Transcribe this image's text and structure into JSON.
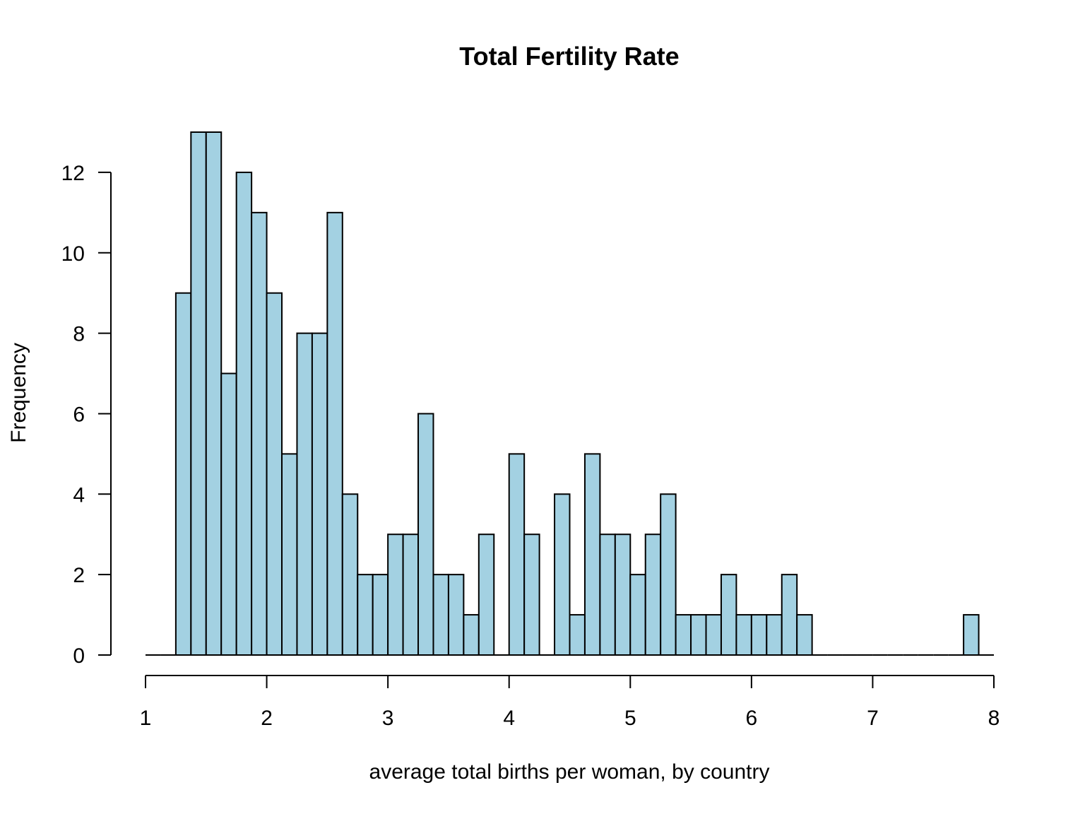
{
  "chart_data": {
    "type": "bar",
    "title": "Total Fertility Rate",
    "xlabel": "average total births per woman, by country",
    "ylabel": "Frequency",
    "xlim": [
      1,
      8
    ],
    "ylim": [
      0,
      13
    ],
    "x_ticks": [
      "1",
      "2",
      "3",
      "4",
      "5",
      "6",
      "7",
      "8"
    ],
    "y_ticks": [
      "0",
      "2",
      "4",
      "6",
      "8",
      "10",
      "12"
    ],
    "bin_width": 0.125,
    "bin_start": 1.0,
    "values": [
      0,
      0,
      9,
      13,
      13,
      7,
      12,
      11,
      9,
      5,
      8,
      8,
      11,
      4,
      2,
      2,
      3,
      3,
      6,
      2,
      2,
      1,
      3,
      0,
      5,
      3,
      0,
      4,
      1,
      5,
      3,
      3,
      2,
      3,
      4,
      1,
      1,
      1,
      2,
      1,
      1,
      1,
      2,
      1,
      0,
      0,
      0,
      0,
      0,
      0,
      0,
      0,
      0,
      0,
      1,
      0
    ],
    "bar_fill": "#a3d1e2",
    "bar_stroke": "#000000",
    "grid": false,
    "legend": false
  }
}
